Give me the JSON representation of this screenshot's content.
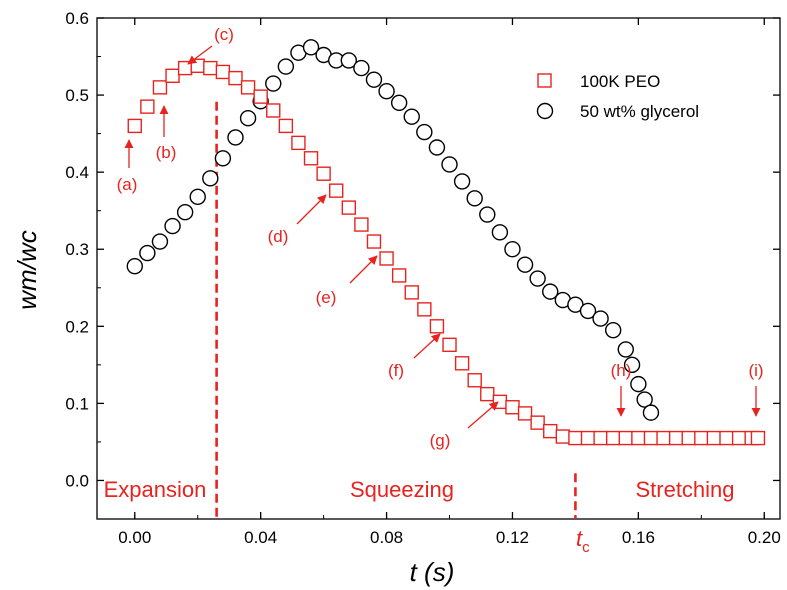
{
  "chart_data": {
    "type": "scatter",
    "xlabel": "t (s)",
    "ylabel": "wm/wc",
    "xlim": [
      -0.012,
      0.205
    ],
    "ylim": [
      -0.05,
      0.6
    ],
    "xticks": [
      "0.00",
      "0.04",
      "0.08",
      "0.12",
      "0.16",
      "0.20"
    ],
    "xtick_values": [
      0.0,
      0.04,
      0.08,
      0.12,
      0.16,
      0.2
    ],
    "yticks": [
      "0.0",
      "0.1",
      "0.2",
      "0.3",
      "0.4",
      "0.5",
      "0.6"
    ],
    "ytick_values": [
      0.0,
      0.1,
      0.2,
      0.3,
      0.4,
      0.5,
      0.6
    ],
    "grid": false,
    "legend_position": "top-right",
    "colors": {
      "peo": "#e8231f",
      "glycerol": "#000000",
      "annotation": "#e8231f"
    },
    "series": [
      {
        "name": "100K PEO",
        "marker": "square",
        "x": [
          0.0,
          0.004,
          0.008,
          0.012,
          0.016,
          0.02,
          0.024,
          0.028,
          0.032,
          0.036,
          0.04,
          0.044,
          0.048,
          0.052,
          0.056,
          0.06,
          0.064,
          0.068,
          0.072,
          0.076,
          0.08,
          0.084,
          0.088,
          0.092,
          0.096,
          0.1,
          0.104,
          0.108,
          0.112,
          0.116,
          0.12,
          0.124,
          0.128,
          0.132,
          0.136,
          0.14,
          0.144,
          0.148,
          0.152,
          0.156,
          0.16,
          0.164,
          0.168,
          0.172,
          0.176,
          0.18,
          0.184,
          0.188,
          0.192,
          0.196,
          0.198
        ],
        "y": [
          0.46,
          0.485,
          0.51,
          0.525,
          0.535,
          0.538,
          0.535,
          0.53,
          0.522,
          0.51,
          0.498,
          0.48,
          0.46,
          0.438,
          0.418,
          0.398,
          0.376,
          0.354,
          0.332,
          0.31,
          0.288,
          0.266,
          0.244,
          0.222,
          0.2,
          0.176,
          0.152,
          0.13,
          0.112,
          0.102,
          0.095,
          0.087,
          0.075,
          0.064,
          0.057,
          0.055,
          0.055,
          0.055,
          0.055,
          0.055,
          0.055,
          0.055,
          0.055,
          0.055,
          0.055,
          0.055,
          0.055,
          0.055,
          0.055,
          0.055,
          0.055
        ]
      },
      {
        "name": "50 wt% glycerol",
        "marker": "circle",
        "x": [
          0.0,
          0.004,
          0.008,
          0.012,
          0.016,
          0.02,
          0.024,
          0.028,
          0.032,
          0.036,
          0.04,
          0.044,
          0.048,
          0.052,
          0.056,
          0.06,
          0.064,
          0.068,
          0.072,
          0.076,
          0.08,
          0.084,
          0.088,
          0.092,
          0.096,
          0.1,
          0.104,
          0.108,
          0.112,
          0.116,
          0.12,
          0.124,
          0.128,
          0.132,
          0.136,
          0.14,
          0.144,
          0.148,
          0.152,
          0.156,
          0.158,
          0.16,
          0.162,
          0.164
        ],
        "y": [
          0.278,
          0.295,
          0.31,
          0.33,
          0.348,
          0.368,
          0.392,
          0.418,
          0.445,
          0.47,
          0.492,
          0.515,
          0.537,
          0.555,
          0.562,
          0.552,
          0.545,
          0.545,
          0.535,
          0.52,
          0.505,
          0.49,
          0.472,
          0.452,
          0.432,
          0.41,
          0.388,
          0.366,
          0.345,
          0.322,
          0.3,
          0.28,
          0.262,
          0.245,
          0.234,
          0.228,
          0.22,
          0.21,
          0.195,
          0.17,
          0.15,
          0.125,
          0.105,
          0.088
        ]
      }
    ],
    "legend": [
      {
        "label": "100K PEO",
        "marker": "square"
      },
      {
        "label": "50 wt% glycerol",
        "marker": "circle"
      }
    ],
    "vertical_lines": [
      {
        "x": 0.026,
        "label": ""
      },
      {
        "x": 0.14,
        "label_main": "t",
        "label_sub": "c"
      }
    ],
    "regions": [
      {
        "label": "Expansion"
      },
      {
        "label": "Squeezing"
      },
      {
        "label": "Stretching"
      }
    ],
    "annotations": [
      {
        "label": "(a)",
        "target_x": 0.0,
        "target_y": 0.46
      },
      {
        "label": "(b)",
        "target_x": 0.009,
        "target_y": 0.512
      },
      {
        "label": "(c)",
        "target_x": 0.02,
        "target_y": 0.54
      },
      {
        "label": "(d)",
        "target_x": 0.0625,
        "target_y": 0.392
      },
      {
        "label": "(e)",
        "target_x": 0.0785,
        "target_y": 0.292
      },
      {
        "label": "(f)",
        "target_x": 0.0985,
        "target_y": 0.19
      },
      {
        "label": "(g)",
        "target_x": 0.1155,
        "target_y": 0.107
      },
      {
        "label": "(h)",
        "target_x": 0.156,
        "target_y": 0.058
      },
      {
        "label": "(i)",
        "target_x": 0.198,
        "target_y": 0.058
      }
    ]
  }
}
